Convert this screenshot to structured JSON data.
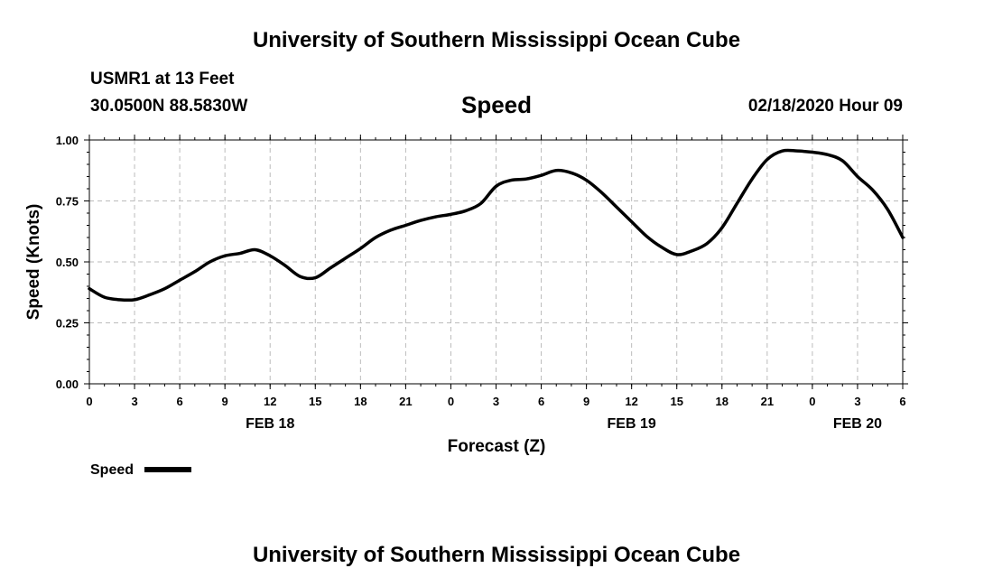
{
  "header": {
    "title": "University of Southern Mississippi Ocean Cube",
    "station": "USMR1 at 13 Feet",
    "coordinates": "30.0500N 88.5830W",
    "variable": "Speed",
    "datetime": "02/18/2020 Hour 09"
  },
  "footer": {
    "title": "University of Southern Mississippi Ocean Cube"
  },
  "chart_data": {
    "type": "line",
    "ylabel": "Speed (Knots)",
    "xlabel": "Forecast (Z)",
    "ylim": [
      0,
      1
    ],
    "xlim": [
      0,
      54
    ],
    "x_units": "hours from 00Z FEB 18",
    "y_ticks": [
      "0.00",
      "0.25",
      "0.50",
      "0.75",
      "1.00"
    ],
    "x_tick_labels": [
      "0",
      "3",
      "6",
      "9",
      "12",
      "15",
      "18",
      "21",
      "0",
      "3",
      "6",
      "9",
      "12",
      "15",
      "18",
      "21",
      "0",
      "3",
      "6"
    ],
    "date_labels": [
      {
        "text": "FEB 18",
        "hour": 12
      },
      {
        "text": "FEB 19",
        "hour": 36
      },
      {
        "text": "FEB 20",
        "hour": 51
      }
    ],
    "grid": true,
    "legend": {
      "label": "Speed",
      "placement": "bottom-left"
    },
    "series": [
      {
        "name": "Speed",
        "color": "#000000",
        "x": [
          0,
          1,
          2,
          3,
          4,
          5,
          6,
          7,
          8,
          9,
          10,
          11,
          12,
          13,
          14,
          15,
          16,
          17,
          18,
          19,
          20,
          21,
          22,
          23,
          24,
          25,
          26,
          27,
          28,
          29,
          30,
          31,
          32,
          33,
          34,
          35,
          36,
          37,
          38,
          39,
          40,
          41,
          42,
          43,
          44,
          45,
          46,
          47,
          48,
          49,
          50,
          51,
          52,
          53,
          54
        ],
        "y": [
          0.39,
          0.355,
          0.345,
          0.345,
          0.365,
          0.39,
          0.425,
          0.46,
          0.5,
          0.525,
          0.535,
          0.55,
          0.525,
          0.485,
          0.44,
          0.435,
          0.475,
          0.515,
          0.555,
          0.6,
          0.63,
          0.65,
          0.67,
          0.685,
          0.695,
          0.71,
          0.74,
          0.81,
          0.835,
          0.84,
          0.855,
          0.875,
          0.865,
          0.835,
          0.785,
          0.725,
          0.665,
          0.605,
          0.56,
          0.53,
          0.545,
          0.575,
          0.64,
          0.74,
          0.84,
          0.92,
          0.955,
          0.955,
          0.95,
          0.94,
          0.915,
          0.85,
          0.795,
          0.715,
          0.6
        ]
      }
    ]
  }
}
